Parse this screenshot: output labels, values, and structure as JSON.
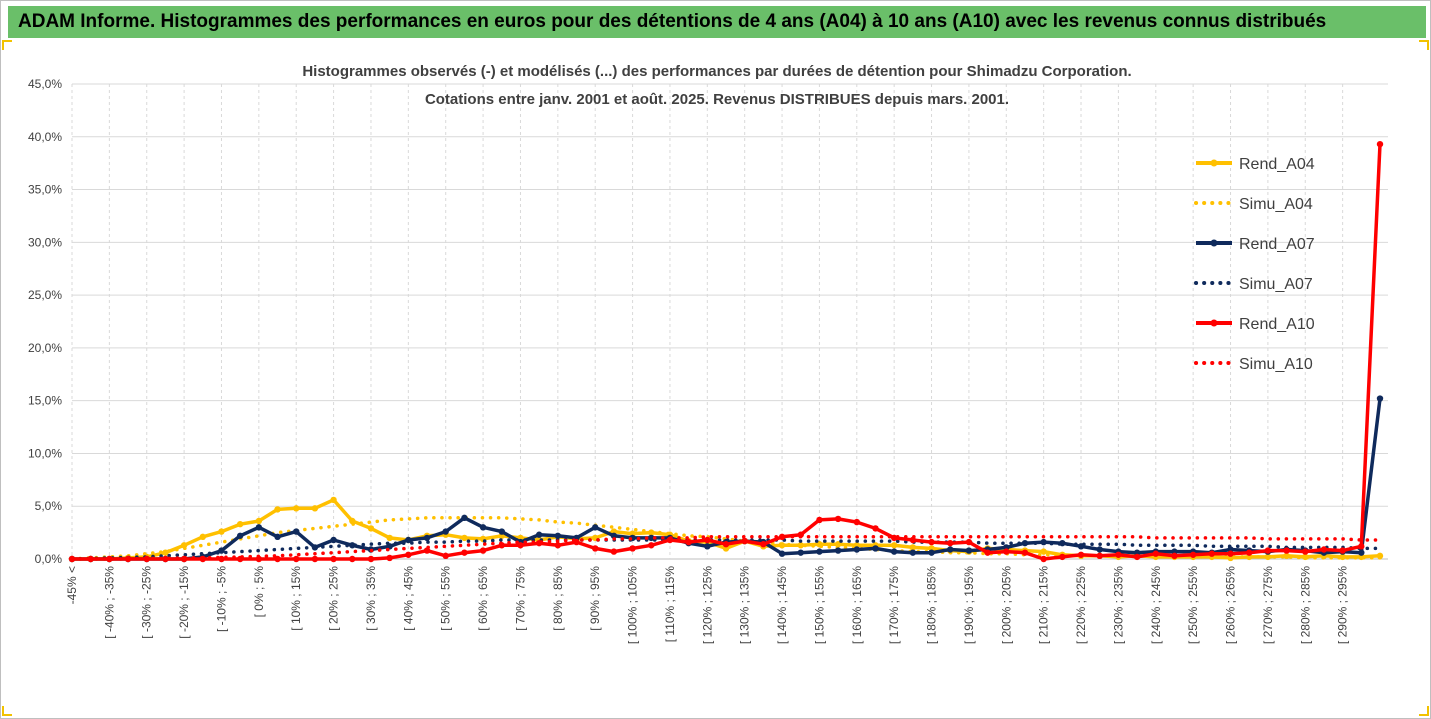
{
  "banner": {
    "title": "ADAM Informe. Histogrammes des performances en euros pour des détentions de 4 ans (A04) à 10 ans (A10) avec les revenus connus distribués"
  },
  "colors": {
    "banner": "#6abf69",
    "a04": "#ffc000",
    "a07": "#0f2a5c",
    "a10": "#ff0000",
    "grid": "#d9d9d9"
  },
  "chart_data": {
    "type": "line",
    "title": "Histogrammes observés (-) et modélisés (...) des performances par durées de détention pour Shimadzu Corporation.",
    "subtitle": "Cotations entre janv. 2001 et août. 2025. Revenus DISTRIBUES depuis mars. 2001.",
    "ylim": [
      0,
      45
    ],
    "y_ticks": [
      "0,0%",
      "5,0%",
      "10,0%",
      "15,0%",
      "20,0%",
      "25,0%",
      "30,0%",
      "35,0%",
      "40,0%",
      "45,0%"
    ],
    "y_format": "percent",
    "x_tick_labels": [
      "-45% <",
      "[ -40% ; -35%",
      "[ -30% ; -25%",
      "[ -20% ; -15%",
      "[ -10% ; -5%",
      "[ 0% ; 5%",
      "[ 10% ; 15%",
      "[ 20% ; 25%",
      "[ 30% ; 35%",
      "[ 40% ; 45%",
      "[ 50% ; 55%",
      "[ 60% ; 65%",
      "[ 70% ; 75%",
      "[ 80% ; 85%",
      "[ 90% ; 95%",
      "[ 100% ; 105%",
      "[ 110% ; 115%",
      "[ 120% ; 125%",
      "[ 130% ; 135%",
      "[ 140% ; 145%",
      "[ 150% ; 155%",
      "[ 160% ; 165%",
      "[ 170% ; 175%",
      "[ 180% ; 185%",
      "[ 190% ; 195%",
      "[ 200% ; 205%",
      "[ 210% ; 215%",
      "[ 220% ; 225%",
      "[ 230% ; 235%",
      "[ 240% ; 245%",
      "[ 250% ; 255%",
      "[ 260% ; 265%",
      "[ 270% ; 275%",
      "[ 280% ; 285%",
      "[ 290% ; 295%"
    ],
    "legend_position": "right",
    "series": [
      {
        "name": "Rend_A04",
        "style": "solid",
        "color": "#ffc000",
        "values": [
          0.0,
          0.0,
          0.0,
          0.1,
          0.2,
          0.6,
          1.3,
          2.1,
          2.6,
          3.3,
          3.6,
          4.7,
          4.8,
          4.8,
          5.6,
          3.6,
          2.9,
          2.0,
          1.8,
          2.2,
          2.3,
          2.0,
          1.9,
          2.2,
          2.0,
          1.8,
          2.1,
          1.9,
          2.0,
          2.6,
          2.4,
          2.5,
          2.3,
          1.7,
          1.6,
          1.0,
          1.7,
          1.2,
          1.3,
          1.3,
          1.4,
          1.4,
          1.3,
          1.3,
          1.3,
          1.1,
          1.0,
          0.8,
          0.7,
          1.0,
          0.9,
          0.8,
          0.7,
          0.4,
          0.3,
          0.3,
          0.2,
          0.3,
          0.2,
          0.2,
          0.2,
          0.2,
          0.1,
          0.2,
          0.2,
          0.3,
          0.2,
          0.3,
          0.2,
          0.2,
          0.3
        ]
      },
      {
        "name": "Simu_A04",
        "style": "dotted",
        "color": "#ffc000",
        "values": [
          0.0,
          0.1,
          0.2,
          0.3,
          0.5,
          0.7,
          1.0,
          1.3,
          1.6,
          1.9,
          2.2,
          2.5,
          2.7,
          2.9,
          3.1,
          3.3,
          3.5,
          3.7,
          3.8,
          3.9,
          3.9,
          3.9,
          3.9,
          3.9,
          3.8,
          3.7,
          3.5,
          3.4,
          3.2,
          3.0,
          2.8,
          2.6,
          2.4,
          2.2,
          2.1,
          1.9,
          1.7,
          1.6,
          1.4,
          1.3,
          1.2,
          1.1,
          1.0,
          0.9,
          0.8,
          0.7,
          0.7,
          0.6,
          0.6,
          0.5,
          0.5,
          0.4,
          0.4,
          0.4,
          0.3,
          0.3,
          0.3,
          0.3,
          0.2,
          0.2,
          0.2,
          0.2,
          0.2,
          0.2,
          0.2,
          0.2,
          0.1,
          0.1,
          0.1,
          0.1,
          0.1
        ]
      },
      {
        "name": "Rend_A07",
        "style": "solid",
        "color": "#0f2a5c",
        "values": [
          0.0,
          0.0,
          0.0,
          0.0,
          0.0,
          0.0,
          0.0,
          0.2,
          0.8,
          2.2,
          3.0,
          2.1,
          2.6,
          1.1,
          1.8,
          1.3,
          0.9,
          1.2,
          1.8,
          2.0,
          2.6,
          3.9,
          3.0,
          2.6,
          1.6,
          2.3,
          2.2,
          2.0,
          3.0,
          2.2,
          2.0,
          2.0,
          2.0,
          1.5,
          1.2,
          1.6,
          1.7,
          1.6,
          0.5,
          0.6,
          0.7,
          0.8,
          0.9,
          1.0,
          0.7,
          0.6,
          0.6,
          0.9,
          0.8,
          0.9,
          1.1,
          1.5,
          1.6,
          1.5,
          1.2,
          0.9,
          0.7,
          0.6,
          0.7,
          0.7,
          0.7,
          0.6,
          0.9,
          0.8,
          0.7,
          0.9,
          0.8,
          0.6,
          0.7,
          0.6,
          15.2
        ]
      },
      {
        "name": "Simu_A07",
        "style": "dotted",
        "color": "#0f2a5c",
        "values": [
          0.0,
          0.05,
          0.1,
          0.15,
          0.2,
          0.3,
          0.4,
          0.5,
          0.6,
          0.7,
          0.8,
          0.9,
          1.0,
          1.1,
          1.2,
          1.3,
          1.4,
          1.5,
          1.5,
          1.6,
          1.6,
          1.7,
          1.7,
          1.8,
          1.8,
          1.8,
          1.8,
          1.8,
          1.8,
          1.8,
          1.8,
          1.8,
          1.8,
          1.8,
          1.8,
          1.8,
          1.8,
          1.8,
          1.8,
          1.7,
          1.7,
          1.7,
          1.7,
          1.7,
          1.7,
          1.6,
          1.6,
          1.6,
          1.6,
          1.5,
          1.5,
          1.5,
          1.5,
          1.4,
          1.4,
          1.4,
          1.4,
          1.3,
          1.3,
          1.3,
          1.3,
          1.2,
          1.2,
          1.2,
          1.2,
          1.1,
          1.1,
          1.1,
          1.1,
          1.0,
          1.0
        ]
      },
      {
        "name": "Rend_A10",
        "style": "solid",
        "color": "#ff0000",
        "values": [
          0.0,
          0.0,
          0.0,
          0.0,
          0.0,
          0.0,
          0.0,
          0.0,
          0.0,
          0.0,
          0.0,
          0.0,
          0.0,
          0.0,
          0.0,
          0.0,
          0.0,
          0.1,
          0.4,
          0.8,
          0.3,
          0.6,
          0.8,
          1.3,
          1.3,
          1.5,
          1.3,
          1.6,
          1.0,
          0.7,
          1.0,
          1.3,
          1.8,
          1.6,
          1.8,
          1.4,
          1.7,
          1.4,
          2.1,
          2.3,
          3.7,
          3.8,
          3.5,
          2.9,
          2.0,
          1.8,
          1.6,
          1.5,
          1.6,
          0.6,
          0.7,
          0.6,
          0.0,
          0.2,
          0.4,
          0.3,
          0.4,
          0.2,
          0.5,
          0.3,
          0.4,
          0.5,
          0.5,
          0.6,
          0.8,
          0.8,
          0.7,
          0.9,
          0.8,
          1.2,
          39.3
        ]
      },
      {
        "name": "Simu_A10",
        "style": "dotted",
        "color": "#ff0000",
        "values": [
          0.0,
          0.0,
          0.0,
          0.0,
          0.05,
          0.05,
          0.1,
          0.1,
          0.15,
          0.2,
          0.25,
          0.3,
          0.4,
          0.5,
          0.6,
          0.7,
          0.8,
          0.9,
          1.0,
          1.1,
          1.2,
          1.3,
          1.4,
          1.5,
          1.6,
          1.6,
          1.7,
          1.8,
          1.8,
          1.9,
          1.9,
          2.0,
          2.0,
          2.0,
          2.1,
          2.1,
          2.1,
          2.1,
          2.1,
          2.1,
          2.1,
          2.1,
          2.1,
          2.1,
          2.1,
          2.1,
          2.1,
          2.1,
          2.1,
          2.1,
          2.1,
          2.1,
          2.1,
          2.1,
          2.1,
          2.1,
          2.1,
          2.1,
          2.0,
          2.0,
          2.0,
          2.0,
          2.0,
          2.0,
          1.9,
          1.9,
          1.9,
          1.9,
          1.9,
          1.8,
          1.8
        ]
      }
    ]
  }
}
